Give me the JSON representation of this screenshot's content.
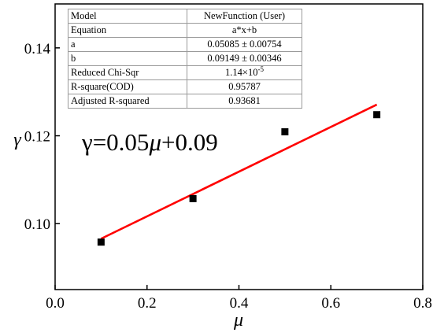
{
  "chart_data": {
    "type": "scatter",
    "xlabel": "μ",
    "ylabel": "γ",
    "xlim": [
      0.0,
      0.8
    ],
    "ylim": [
      0.085,
      0.15
    ],
    "x_ticks": [
      "0.0",
      "0.2",
      "0.4",
      "0.6",
      "0.8"
    ],
    "y_ticks": [
      "0.10",
      "0.12",
      "0.14"
    ],
    "x_tick_values": [
      0.0,
      0.2,
      0.4,
      0.6,
      0.8
    ],
    "y_tick_values": [
      0.1,
      0.12,
      0.14
    ],
    "grid": false,
    "series": [
      {
        "values": [
          [
            0.1,
            0.0958
          ],
          [
            0.3,
            0.1057
          ],
          [
            0.5,
            0.1209
          ],
          [
            0.7,
            0.1248
          ]
        ],
        "marker": "square",
        "color": "#000000"
      }
    ],
    "fit_line": {
      "slope": 0.05085,
      "intercept": 0.09149,
      "x_range": [
        0.1,
        0.7
      ],
      "color": "#ff0000"
    },
    "equation_annotation": {
      "gamma": "γ",
      "eq": "=0.05",
      "mu": "μ",
      "rest": "+0.09"
    },
    "fit_table": {
      "rows": [
        {
          "label": "Model",
          "value": "NewFunction (User)"
        },
        {
          "label": "Equation",
          "value": "a*x+b"
        },
        {
          "label": "a",
          "value": "0.05085 ± 0.00754"
        },
        {
          "label": "b",
          "value": "0.09149 ± 0.00346"
        },
        {
          "label": "Reduced Chi-Sqr",
          "value": "1.14×10",
          "sup": "-5"
        },
        {
          "label": "R-square(COD)",
          "value": "0.95787"
        },
        {
          "label": "Adjusted R-squared",
          "value": "0.93681"
        }
      ]
    }
  }
}
